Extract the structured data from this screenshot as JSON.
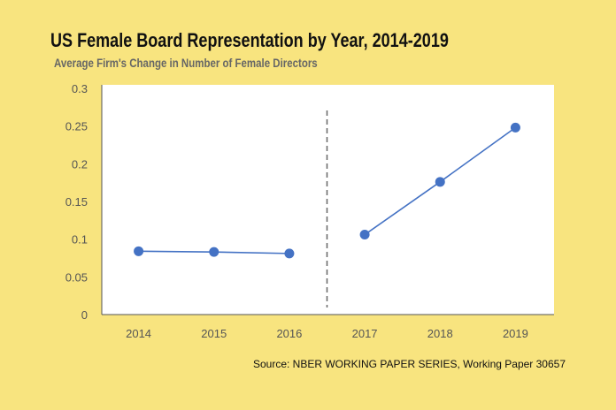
{
  "chart_data": {
    "type": "line",
    "title": "US Female Board Representation by Year, 2014-2019",
    "subtitle": "Average Firm's Change in Number of Female Directors",
    "categories": [
      "2014",
      "2015",
      "2016",
      "2017",
      "2018",
      "2019"
    ],
    "series": [
      {
        "segment": "2014-2016",
        "x": [
          "2014",
          "2015",
          "2016"
        ],
        "values": [
          0.084,
          0.083,
          0.081
        ]
      },
      {
        "segment": "2017-2019",
        "x": [
          "2017",
          "2018",
          "2019"
        ],
        "values": [
          0.106,
          0.176,
          0.248
        ]
      }
    ],
    "ylim": [
      0,
      0.3
    ],
    "yticks": [
      "0",
      "0.05",
      "0.1",
      "0.15",
      "0.2",
      "0.25",
      "0.3"
    ],
    "xlabel": "",
    "ylabel": "",
    "grid": false,
    "annotations": [
      {
        "type": "dashed-vertical-line",
        "between": [
          "2016",
          "2017"
        ]
      }
    ],
    "source": "Source: NBER WORKING PAPER SERIES, Working Paper 30657",
    "colors": {
      "series": "#4472c4",
      "background": "#f8e47f",
      "plot": "#ffffff",
      "divider": "#666666"
    }
  }
}
